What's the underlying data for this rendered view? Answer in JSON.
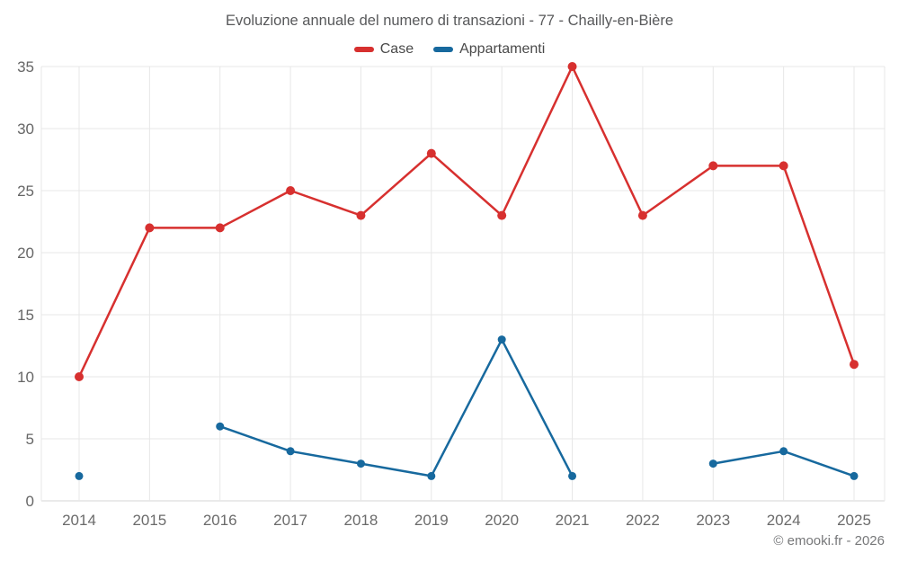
{
  "title": "Evoluzione annuale del numero di transazioni - 77 - Chailly-en-Bière",
  "footer": "© emooki.fr - 2026",
  "legend": {
    "items": [
      {
        "label": "Case",
        "color": "#d7302f"
      },
      {
        "label": "Appartamenti",
        "color": "#17699e"
      }
    ]
  },
  "chart_data": {
    "type": "line",
    "title": "Evoluzione annuale del numero di transazioni - 77 - Chailly-en-Bière",
    "xlabel": "",
    "ylabel": "",
    "categories": [
      "2014",
      "2015",
      "2016",
      "2017",
      "2018",
      "2019",
      "2020",
      "2021",
      "2022",
      "2023",
      "2024",
      "2025"
    ],
    "series": [
      {
        "name": "Case",
        "color": "#d7302f",
        "marker_radius": 5,
        "values": [
          10,
          22,
          22,
          25,
          23,
          28,
          23,
          35,
          23,
          27,
          27,
          11
        ]
      },
      {
        "name": "Appartamenti",
        "color": "#17699e",
        "marker_radius": 4.5,
        "values": [
          2,
          null,
          6,
          4,
          3,
          2,
          13,
          2,
          null,
          3,
          4,
          2
        ]
      }
    ],
    "ylim": [
      0,
      35
    ],
    "yticks": [
      0,
      5,
      10,
      15,
      20,
      25,
      30,
      35
    ],
    "grid": true,
    "legend_position": "top",
    "grid_color": "#e7e7e7",
    "axis_line_color": "#d6d6d6"
  }
}
